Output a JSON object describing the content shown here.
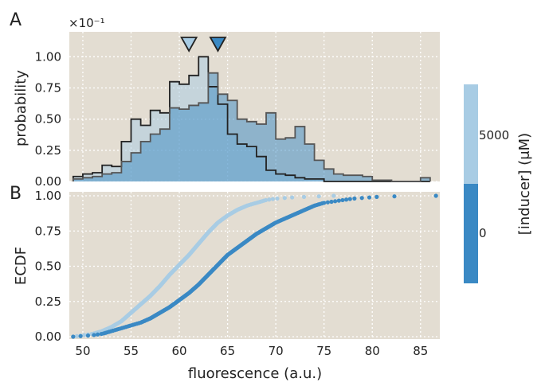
{
  "panel_labels": [
    "A",
    "B"
  ],
  "colorbar": {
    "label": "[inducer] (μM)",
    "ticks": [
      "5000",
      "0"
    ],
    "colors": [
      "#a8cce4",
      "#3a89c4"
    ]
  },
  "theme": {
    "background": "#e3ddd2",
    "grid": "#ffffff",
    "hist_light": "#a8cce4",
    "hist_dark": "#3a89c4",
    "outline_light": "#222222",
    "outline_dark": "#555555"
  },
  "chart_data": [
    {
      "type": "area",
      "panel": "A",
      "xlabel": "",
      "ylabel": "probability",
      "scale_note": "×10⁻¹",
      "xlim": [
        48.6,
        87.0
      ],
      "ylim": [
        0,
        1.2
      ],
      "yticks": [
        0.0,
        0.25,
        0.5,
        0.75,
        1.0
      ],
      "ytick_labels": [
        "0.00",
        "0.25",
        "0.50",
        "0.75",
        "1.00"
      ],
      "grid": true,
      "bin_edges": [
        49,
        50,
        51,
        52,
        53,
        54,
        55,
        56,
        57,
        58,
        59,
        60,
        61,
        62,
        63,
        64,
        65,
        66,
        67,
        68,
        69,
        70,
        71,
        72,
        73,
        74,
        75,
        76,
        77,
        78,
        79,
        80,
        81,
        82,
        83,
        84,
        85,
        86
      ],
      "series": [
        {
          "name": "5000",
          "color": "#a8cce4",
          "values": [
            0.04,
            0.06,
            0.07,
            0.13,
            0.12,
            0.32,
            0.5,
            0.45,
            0.57,
            0.55,
            0.8,
            0.78,
            0.85,
            1.0,
            0.76,
            0.62,
            0.38,
            0.3,
            0.28,
            0.2,
            0.09,
            0.06,
            0.05,
            0.03,
            0.02,
            0.02,
            0.0,
            0.0,
            0.0,
            0.0,
            0.0,
            0.0,
            0.0,
            0.0,
            0.0,
            0.0,
            0.0
          ],
          "marker_value": 61
        },
        {
          "name": "0",
          "color": "#3a89c4",
          "values": [
            0.02,
            0.03,
            0.04,
            0.06,
            0.07,
            0.16,
            0.23,
            0.32,
            0.38,
            0.42,
            0.59,
            0.58,
            0.61,
            0.63,
            0.87,
            0.7,
            0.65,
            0.5,
            0.48,
            0.46,
            0.55,
            0.34,
            0.35,
            0.44,
            0.3,
            0.17,
            0.1,
            0.06,
            0.05,
            0.05,
            0.04,
            0.01,
            0.01,
            0.0,
            0.0,
            0.0,
            0.03
          ],
          "marker_value": 64
        }
      ]
    },
    {
      "type": "scatter",
      "panel": "B",
      "xlabel": "fluorescence (a.u.)",
      "ylabel": "ECDF",
      "xlim": [
        48.6,
        87.0
      ],
      "ylim": [
        0,
        1
      ],
      "xticks": [
        50,
        55,
        60,
        65,
        70,
        75,
        80,
        85
      ],
      "yticks": [
        0.0,
        0.25,
        0.5,
        0.75,
        1.0
      ],
      "ytick_labels": [
        "0.00",
        "0.25",
        "0.50",
        "0.75",
        "1.00"
      ],
      "grid": true,
      "series": [
        {
          "name": "5000",
          "color": "#a8cce4",
          "x": [
            49.0,
            50.0,
            51.0,
            52.0,
            53.0,
            54.0,
            55.0,
            56.0,
            57.0,
            58.0,
            59.0,
            60.0,
            61.0,
            62.0,
            63.0,
            64.0,
            65.0,
            66.0,
            67.0,
            68.0,
            69.0,
            70.0,
            72.0,
            74.0,
            76.0
          ],
          "y": [
            0.0,
            0.01,
            0.02,
            0.04,
            0.07,
            0.11,
            0.17,
            0.23,
            0.29,
            0.36,
            0.44,
            0.51,
            0.58,
            0.66,
            0.74,
            0.81,
            0.86,
            0.9,
            0.93,
            0.95,
            0.97,
            0.98,
            0.99,
            0.995,
            1.0
          ]
        },
        {
          "name": "0",
          "color": "#3a89c4",
          "x": [
            49.0,
            51.0,
            52.0,
            53.0,
            54.0,
            55.0,
            56.0,
            57.0,
            58.0,
            59.0,
            60.0,
            61.0,
            62.0,
            63.0,
            64.0,
            65.0,
            66.0,
            67.0,
            68.0,
            69.0,
            70.0,
            71.0,
            72.0,
            73.0,
            74.0,
            75.0,
            76.0,
            77.0,
            78.0,
            79.0,
            80.0,
            81.0,
            86.6
          ],
          "y": [
            0.0,
            0.01,
            0.02,
            0.04,
            0.06,
            0.08,
            0.1,
            0.13,
            0.17,
            0.21,
            0.26,
            0.31,
            0.37,
            0.44,
            0.51,
            0.58,
            0.63,
            0.68,
            0.73,
            0.77,
            0.81,
            0.84,
            0.87,
            0.9,
            0.93,
            0.95,
            0.96,
            0.97,
            0.98,
            0.985,
            0.99,
            0.995,
            1.0
          ]
        }
      ]
    }
  ]
}
